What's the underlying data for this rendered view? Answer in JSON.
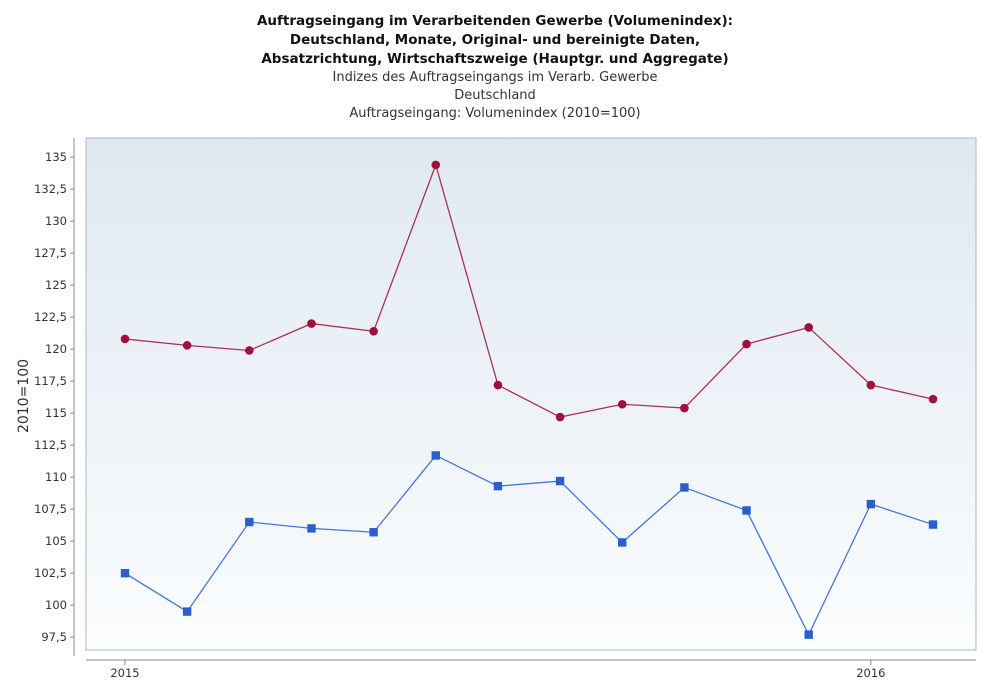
{
  "header": {
    "title_lines": [
      "Auftragseingang im Verarbeitenden Gewerbe (Volumenindex):",
      "Deutschland, Monate, Original- und bereinigte Daten,",
      "Absatzrichtung, Wirtschaftszweige (Hauptgr. und Aggregate)"
    ],
    "subtitle_lines": [
      "Indizes des Auftragseingangs im Verarb. Gewerbe",
      "Deutschland",
      "Auftragseingang: Volumenindex (2010=100)"
    ]
  },
  "chart_data": {
    "type": "line",
    "title": "Auftragseingang im Verarbeitenden Gewerbe (Volumenindex): Deutschland, Monate, Original- und bereinigte Daten, Absatzrichtung, Wirtschaftszweige (Hauptgr. und Aggregate)",
    "subtitle": "Indizes des Auftragseingangs im Verarb. Gewerbe / Deutschland / Auftragseingang: Volumenindex (2010=100)",
    "xlabel": "",
    "ylabel": "2010=100",
    "x": [
      "2015-01",
      "2015-02",
      "2015-03",
      "2015-04",
      "2015-05",
      "2015-06",
      "2015-07",
      "2015-08",
      "2015-09",
      "2015-10",
      "2015-11",
      "2015-12",
      "2016-01",
      "2016-02"
    ],
    "x_ticks": [
      {
        "x": "2015-01",
        "label": "2015"
      },
      {
        "x": "2016-01",
        "label": "2016"
      }
    ],
    "ylim": [
      96.5,
      136.5
    ],
    "y_ticks": [
      97.5,
      100,
      102.5,
      105,
      107.5,
      110,
      112.5,
      115,
      117.5,
      120,
      122.5,
      125,
      127.5,
      130,
      132.5,
      135
    ],
    "y_tick_labels": [
      "97,5",
      "100",
      "102,5",
      "105",
      "107,5",
      "110",
      "112,5",
      "115",
      "117,5",
      "120",
      "122,5",
      "125",
      "127,5",
      "130",
      "132,5",
      "135"
    ],
    "grid": false,
    "legend": "none",
    "series": [
      {
        "color": "#a0103a",
        "marker": "circle",
        "values": [
          120.8,
          120.3,
          119.9,
          122.0,
          121.4,
          134.4,
          117.2,
          114.7,
          115.7,
          115.4,
          120.4,
          121.7,
          117.2,
          116.1
        ]
      },
      {
        "color": "#2a5fcc",
        "marker": "square",
        "values": [
          102.5,
          99.5,
          106.5,
          106.0,
          105.7,
          111.7,
          109.3,
          109.7,
          104.9,
          109.2,
          107.4,
          97.7,
          107.9,
          106.3
        ]
      }
    ]
  }
}
